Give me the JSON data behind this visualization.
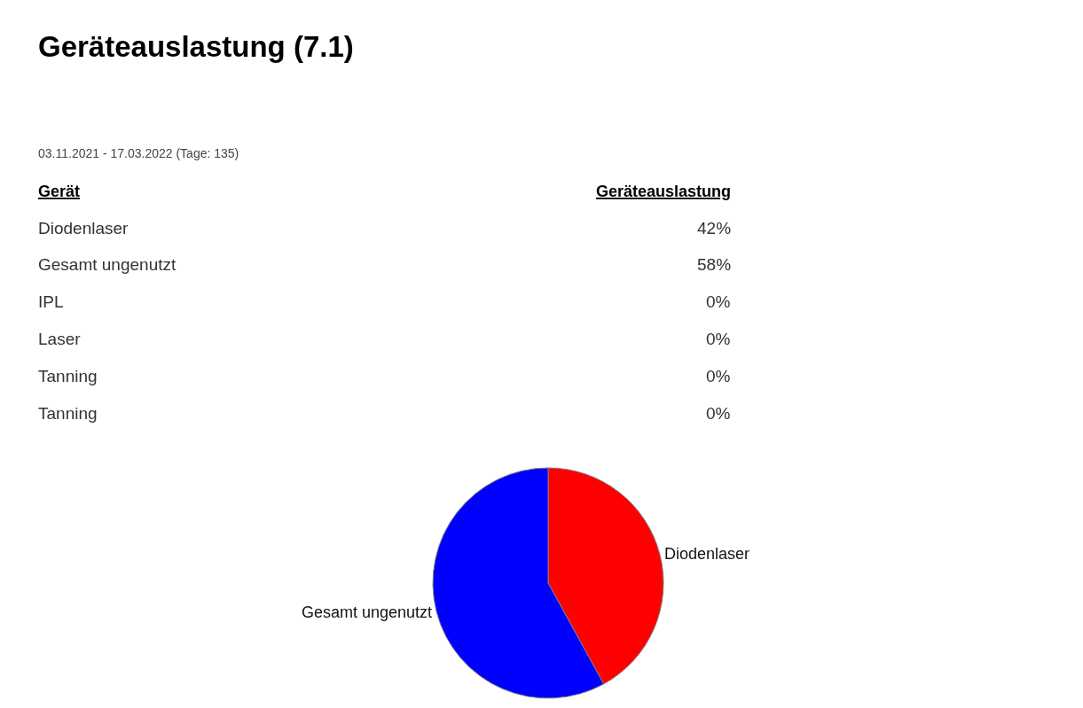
{
  "chart_data": [
    {
      "type": "other",
      "title": "Geräteauslastung (7.1)",
      "subtitle": "03.11.2021 - 17.03.2022 (Tage: 135)",
      "annotations": [
        "Gerät",
        "Geräteauslastung"
      ],
      "categories": [
        "Diodenlaser",
        "Gesamt ungenutzt",
        "IPL",
        "Laser",
        "Tanning",
        "Tanning"
      ],
      "values": [
        42,
        58,
        0,
        0,
        0,
        0
      ],
      "value_labels": [
        "42%",
        "58%",
        "0%",
        "0%",
        "0%",
        "0%"
      ]
    },
    {
      "type": "pie",
      "categories": [
        "Diodenlaser",
        "Gesamt ungenutzt"
      ],
      "values": [
        42,
        58
      ],
      "colors": [
        "#ff0000",
        "#0000ff"
      ],
      "legend": false
    }
  ]
}
